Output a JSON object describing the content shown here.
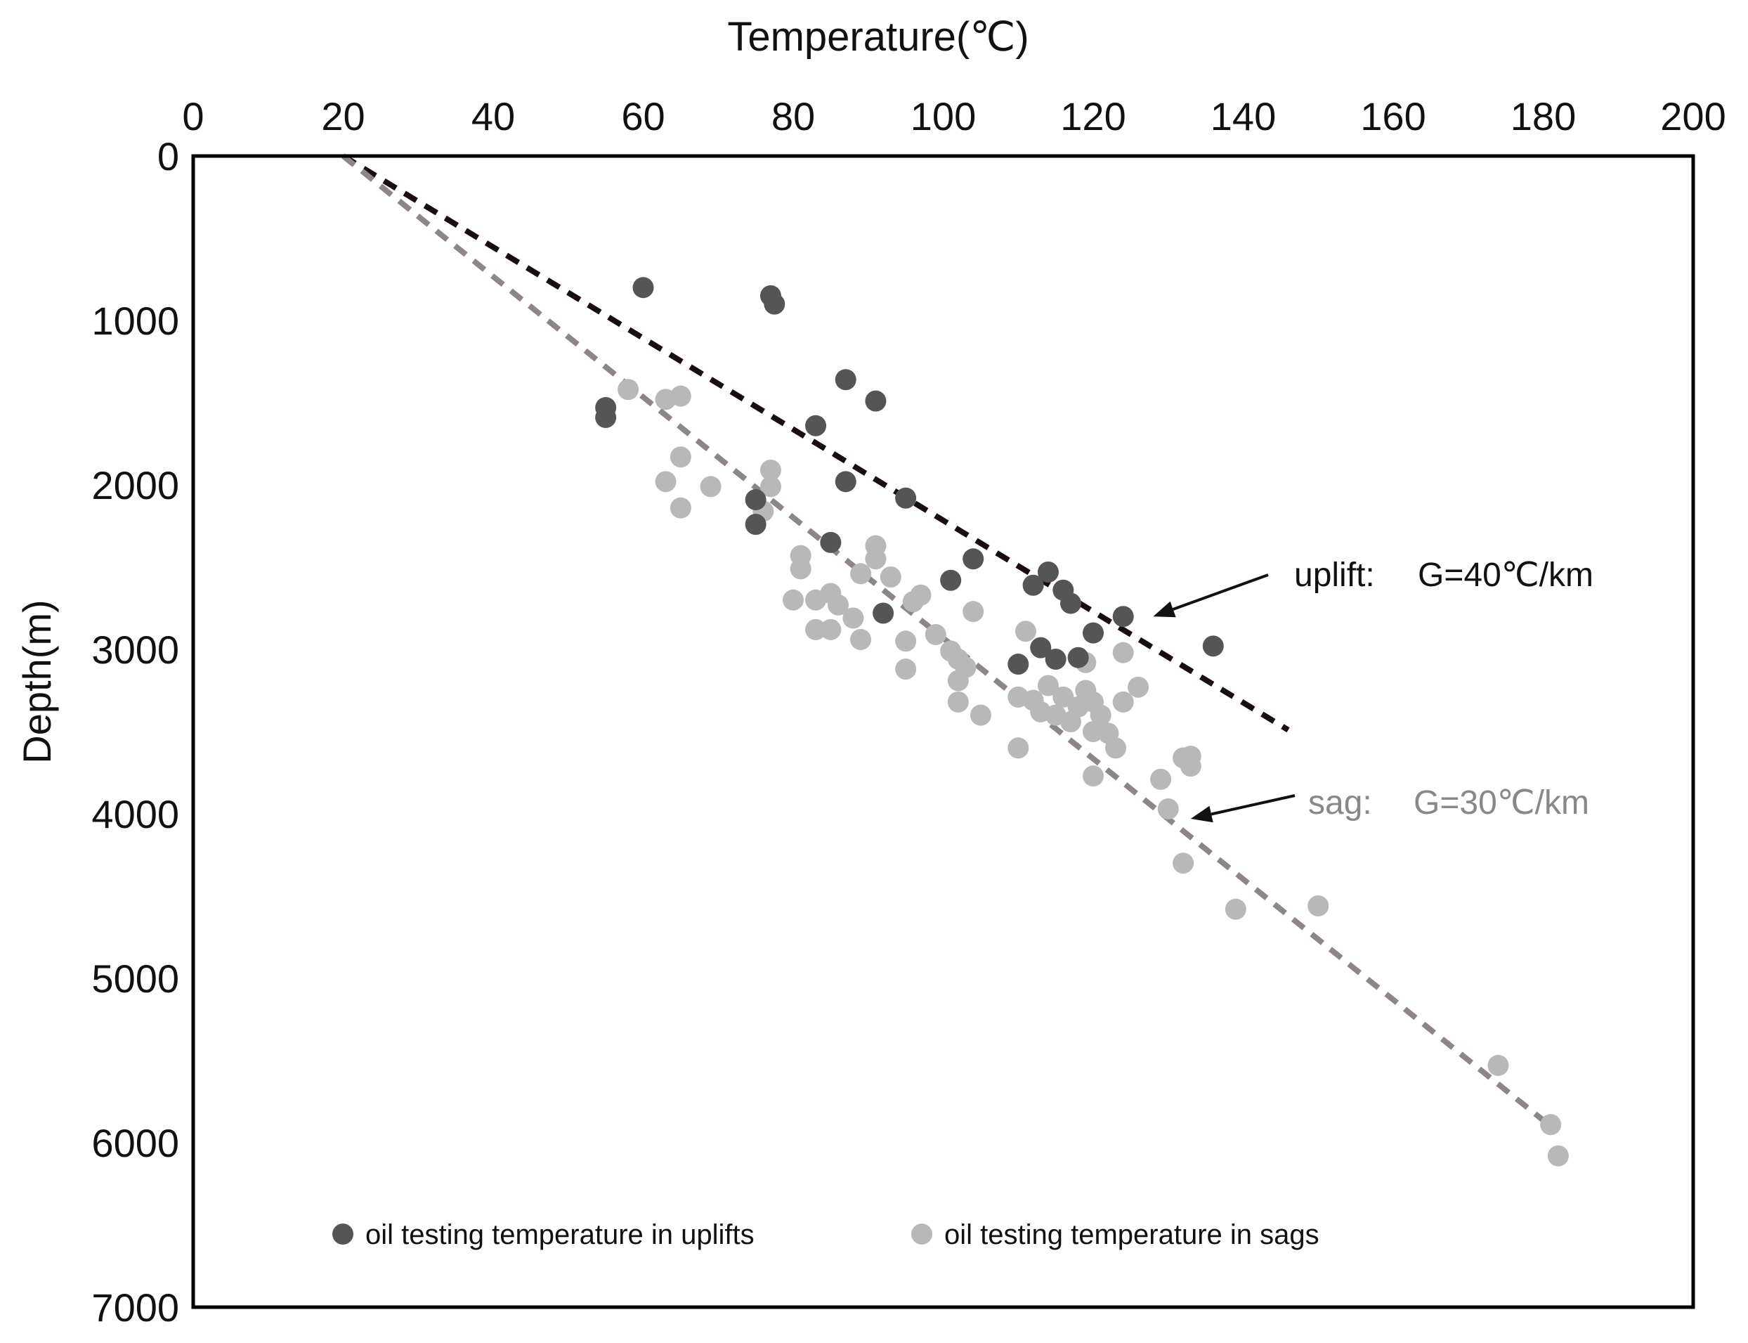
{
  "chart_data": {
    "type": "scatter",
    "xlabel": "Temperature(℃)",
    "ylabel": "Depth(m)",
    "xlim": [
      0,
      200
    ],
    "ylim": [
      0,
      7000
    ],
    "x_axis_position": "top",
    "y_inverted": true,
    "grid": false,
    "x_ticks": [
      "0",
      "20",
      "40",
      "60",
      "80",
      "100",
      "120",
      "140",
      "160",
      "180",
      "200"
    ],
    "y_ticks": [
      "0",
      "1000",
      "2000",
      "3000",
      "4000",
      "5000",
      "6000",
      "7000"
    ],
    "legend_position": "bottom",
    "series": [
      {
        "name": "oil testing temperature in uplifts",
        "color": "#555555",
        "points": [
          [
            60,
            800
          ],
          [
            77,
            850
          ],
          [
            77.5,
            900
          ],
          [
            55,
            1530
          ],
          [
            55,
            1590
          ],
          [
            87,
            1360
          ],
          [
            91,
            1490
          ],
          [
            83,
            1640
          ],
          [
            87,
            1980
          ],
          [
            75,
            2090
          ],
          [
            75,
            2240
          ],
          [
            95,
            2080
          ],
          [
            85,
            2350
          ],
          [
            104,
            2450
          ],
          [
            101,
            2580
          ],
          [
            92,
            2780
          ],
          [
            112,
            2610
          ],
          [
            114,
            2530
          ],
          [
            116,
            2640
          ],
          [
            117,
            2720
          ],
          [
            124,
            2800
          ],
          [
            120,
            2900
          ],
          [
            113,
            2990
          ],
          [
            115,
            3060
          ],
          [
            118,
            3050
          ],
          [
            110,
            3090
          ],
          [
            136,
            2980
          ]
        ]
      },
      {
        "name": "oil testing temperature in sags",
        "color": "#b8b8b8",
        "points": [
          [
            58,
            1420
          ],
          [
            63,
            1480
          ],
          [
            65,
            1460
          ],
          [
            65,
            1830
          ],
          [
            63,
            1980
          ],
          [
            65,
            2140
          ],
          [
            69,
            2010
          ],
          [
            77,
            1910
          ],
          [
            77,
            2010
          ],
          [
            76,
            2160
          ],
          [
            81,
            2430
          ],
          [
            81,
            2510
          ],
          [
            80,
            2700
          ],
          [
            83,
            2700
          ],
          [
            83,
            2880
          ],
          [
            85,
            2660
          ],
          [
            85,
            2880
          ],
          [
            86,
            2730
          ],
          [
            88,
            2810
          ],
          [
            89,
            2540
          ],
          [
            89,
            2940
          ],
          [
            91,
            2370
          ],
          [
            91,
            2450
          ],
          [
            93,
            2560
          ],
          [
            95,
            2950
          ],
          [
            95,
            3120
          ],
          [
            96,
            2710
          ],
          [
            97,
            2670
          ],
          [
            99,
            2910
          ],
          [
            101,
            3010
          ],
          [
            102,
            3060
          ],
          [
            102,
            3190
          ],
          [
            102,
            3320
          ],
          [
            103,
            3110
          ],
          [
            104,
            2770
          ],
          [
            105,
            3400
          ],
          [
            110,
            3290
          ],
          [
            110,
            3600
          ],
          [
            111,
            2890
          ],
          [
            112,
            3310
          ],
          [
            113,
            3380
          ],
          [
            114,
            3220
          ],
          [
            115,
            3400
          ],
          [
            116,
            3290
          ],
          [
            117,
            3440
          ],
          [
            118,
            3350
          ],
          [
            119,
            3080
          ],
          [
            119,
            3250
          ],
          [
            120,
            3320
          ],
          [
            120,
            3500
          ],
          [
            121,
            3400
          ],
          [
            122,
            3510
          ],
          [
            123,
            3600
          ],
          [
            124,
            3020
          ],
          [
            124,
            3320
          ],
          [
            126,
            3230
          ],
          [
            129,
            3790
          ],
          [
            130,
            3970
          ],
          [
            132,
            3660
          ],
          [
            133,
            3650
          ],
          [
            133,
            3710
          ],
          [
            132,
            4300
          ],
          [
            139,
            4580
          ],
          [
            150,
            4560
          ],
          [
            174,
            5530
          ],
          [
            181,
            5890
          ],
          [
            182,
            6080
          ],
          [
            120,
            3770
          ]
        ]
      }
    ],
    "trend_lines": [
      {
        "name": "uplift",
        "color": "#1a0d12",
        "from": [
          20,
          0
        ],
        "to": [
          146,
          3490
        ]
      },
      {
        "name": "sag",
        "color": "#8f8489",
        "from": [
          20,
          0
        ],
        "to": [
          181,
          5900
        ]
      }
    ],
    "annotations": [
      {
        "label": "uplift:",
        "value": "G=40℃/km",
        "color": "#111111",
        "arrow_to": [
          128,
          2800
        ]
      },
      {
        "label": "sag:",
        "value": "G=30℃/km",
        "color": "#888888",
        "arrow_to": [
          133,
          4030
        ]
      }
    ]
  }
}
